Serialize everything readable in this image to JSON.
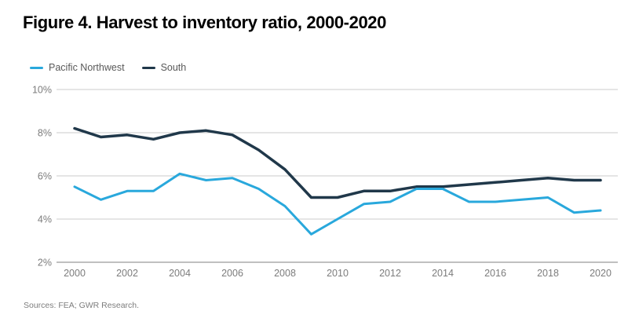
{
  "title": "Figure 4. Harvest to inventory ratio, 2000-2020",
  "source_note": "Sources: FEA; GWR Research.",
  "colors": {
    "pacific_northwest": "#29a8dc",
    "south": "#20384a",
    "gridline": "#cbcbcb",
    "axis_line": "#ababab",
    "tick_label": "#7c7c7c",
    "legend_text": "#595959",
    "title_text": "#000000",
    "source_text": "#7d7d7d",
    "background": "#ffffff"
  },
  "chart_data": {
    "type": "line",
    "title": "Figure 4. Harvest to inventory ratio, 2000-2020",
    "xlabel": "",
    "ylabel": "",
    "x": [
      2000,
      2001,
      2002,
      2003,
      2004,
      2005,
      2006,
      2007,
      2008,
      2009,
      2010,
      2011,
      2012,
      2013,
      2014,
      2015,
      2016,
      2017,
      2018,
      2019,
      2020
    ],
    "series": [
      {
        "name": "Pacific Northwest",
        "color": "#29a8dc",
        "stroke_width": 3,
        "values": [
          5.5,
          4.9,
          5.3,
          5.3,
          6.1,
          5.8,
          5.9,
          5.4,
          4.6,
          3.3,
          4.0,
          4.7,
          4.8,
          5.4,
          5.4,
          4.8,
          4.8,
          4.9,
          5.0,
          4.3,
          4.4
        ]
      },
      {
        "name": "South",
        "color": "#20384a",
        "stroke_width": 3.5,
        "values": [
          8.2,
          7.8,
          7.9,
          7.7,
          8.0,
          8.1,
          7.9,
          7.2,
          6.3,
          5.0,
          5.0,
          5.3,
          5.3,
          5.5,
          5.5,
          5.6,
          5.7,
          5.8,
          5.9,
          5.8,
          5.8
        ]
      }
    ],
    "ylim": [
      2,
      10
    ],
    "y_ticks": [
      {
        "value": 10,
        "label": "10%"
      },
      {
        "value": 8,
        "label": "8%"
      },
      {
        "value": 6,
        "label": "6%"
      },
      {
        "value": 4,
        "label": "4%"
      },
      {
        "value": 2,
        "label": "2%"
      }
    ],
    "x_ticks": [
      {
        "value": 2000,
        "label": "2000"
      },
      {
        "value": 2002,
        "label": "2002"
      },
      {
        "value": 2004,
        "label": "2004"
      },
      {
        "value": 2006,
        "label": "2006"
      },
      {
        "value": 2008,
        "label": "2008"
      },
      {
        "value": 2010,
        "label": "2010"
      },
      {
        "value": 2012,
        "label": "2012"
      },
      {
        "value": 2014,
        "label": "2014"
      },
      {
        "value": 2016,
        "label": "2016"
      },
      {
        "value": 2018,
        "label": "2018"
      },
      {
        "value": 2020,
        "label": "2020"
      }
    ],
    "grid": "horizontal",
    "legend_position": "top-left"
  }
}
